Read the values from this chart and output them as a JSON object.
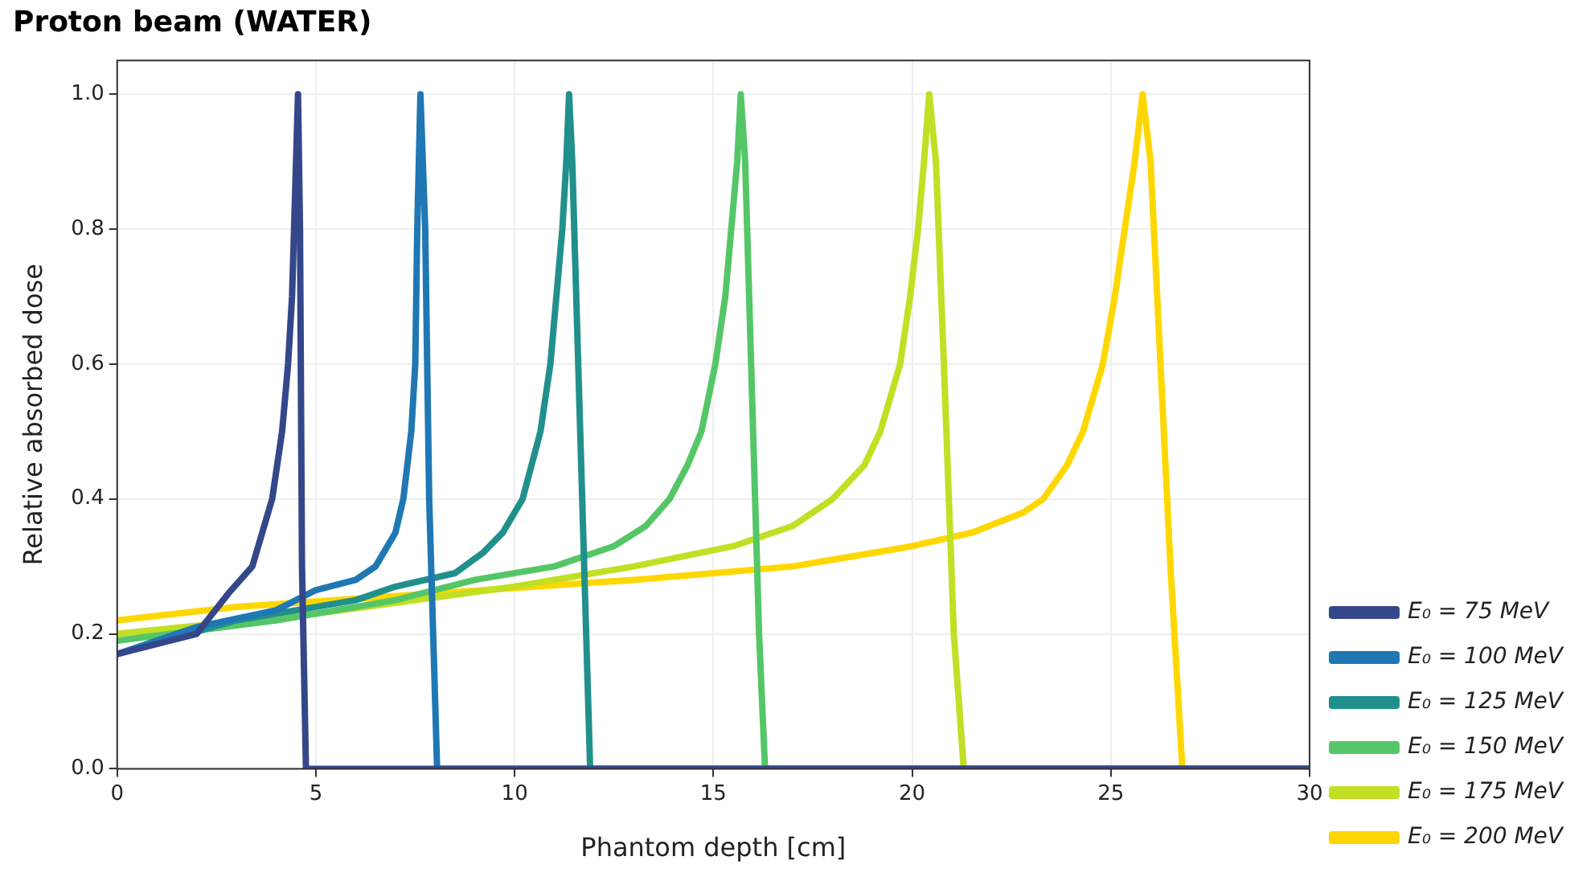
{
  "chart_data": {
    "type": "line",
    "title": "Proton beam (WATER)",
    "xlabel": "Phantom depth [cm]",
    "ylabel": "Relative absorbed dose",
    "xlim": [
      0,
      30
    ],
    "xticks": [
      0,
      5,
      10,
      15,
      20,
      25,
      30
    ],
    "ylim": [
      0,
      1.05
    ],
    "yticks": [
      {
        "value": 0,
        "label": "0.0"
      },
      0.2,
      0.4,
      0.6,
      0.8,
      {
        "value": 1,
        "label": "1.0"
      }
    ],
    "grid": true,
    "legend": "right",
    "marker": "none",
    "line_style": "solid",
    "series": [
      {
        "name": "E₀ = 75 MeV",
        "color": "#34478a",
        "x": [
          0,
          2,
          2.8,
          3.4,
          3.9,
          4.15,
          4.3,
          4.4,
          4.45,
          4.55,
          4.6,
          4.65,
          4.75,
          30
        ],
        "values": [
          0.17,
          0.2,
          0.26,
          0.3,
          0.4,
          0.5,
          0.6,
          0.7,
          0.8,
          1.0,
          0.8,
          0.3,
          0,
          0
        ]
      },
      {
        "name": "E₀ = 100 MeV",
        "color": "#1f77b4",
        "x": [
          0,
          2,
          4,
          5,
          6,
          6.5,
          7,
          7.2,
          7.4,
          7.5,
          7.55,
          7.63,
          7.75,
          7.85,
          8.05,
          30
        ],
        "values": [
          0.17,
          0.21,
          0.235,
          0.265,
          0.28,
          0.3,
          0.35,
          0.4,
          0.5,
          0.6,
          0.8,
          1.0,
          0.8,
          0.4,
          0,
          0
        ]
      },
      {
        "name": "E₀ = 125 MeV",
        "color": "#21908c",
        "x": [
          0,
          3,
          6,
          7,
          8.5,
          9.2,
          9.7,
          10.2,
          10.65,
          10.9,
          11.05,
          11.2,
          11.3,
          11.37,
          11.45,
          11.65,
          11.8,
          11.9,
          30
        ],
        "values": [
          0.17,
          0.22,
          0.25,
          0.27,
          0.29,
          0.32,
          0.35,
          0.4,
          0.5,
          0.6,
          0.7,
          0.8,
          0.9,
          1.0,
          0.9,
          0.5,
          0.2,
          0,
          0
        ]
      },
      {
        "name": "E₀ = 150 MeV",
        "color": "#55c667",
        "x": [
          0,
          4,
          7,
          9,
          11,
          12.5,
          13.3,
          13.9,
          14.35,
          14.7,
          15.05,
          15.3,
          15.45,
          15.6,
          15.69,
          15.8,
          15.95,
          16.15,
          16.3,
          30
        ],
        "values": [
          0.19,
          0.22,
          0.25,
          0.28,
          0.3,
          0.33,
          0.36,
          0.4,
          0.45,
          0.5,
          0.6,
          0.7,
          0.8,
          0.9,
          1.0,
          0.9,
          0.6,
          0.2,
          0,
          0
        ]
      },
      {
        "name": "E₀ = 175 MeV",
        "color": "#c2df23",
        "x": [
          0,
          5,
          10,
          13,
          15.5,
          17,
          18,
          18.8,
          19.2,
          19.7,
          19.95,
          20.15,
          20.3,
          20.43,
          20.6,
          20.8,
          21.05,
          21.3,
          30
        ],
        "values": [
          0.2,
          0.23,
          0.27,
          0.3,
          0.33,
          0.36,
          0.4,
          0.45,
          0.5,
          0.6,
          0.7,
          0.8,
          0.9,
          1.0,
          0.9,
          0.6,
          0.2,
          0,
          0
        ]
      },
      {
        "name": "E₀ = 200 MeV",
        "color": "#ffd700",
        "x": [
          0,
          3,
          8,
          13,
          17,
          20,
          21.5,
          22.8,
          23.3,
          23.9,
          24.3,
          24.8,
          25.1,
          25.35,
          25.6,
          25.8,
          26.0,
          26.25,
          26.5,
          26.8,
          30
        ],
        "values": [
          0.22,
          0.24,
          0.26,
          0.28,
          0.3,
          0.33,
          0.35,
          0.38,
          0.4,
          0.45,
          0.5,
          0.6,
          0.7,
          0.8,
          0.9,
          1.0,
          0.9,
          0.6,
          0.3,
          0,
          0
        ]
      }
    ]
  }
}
